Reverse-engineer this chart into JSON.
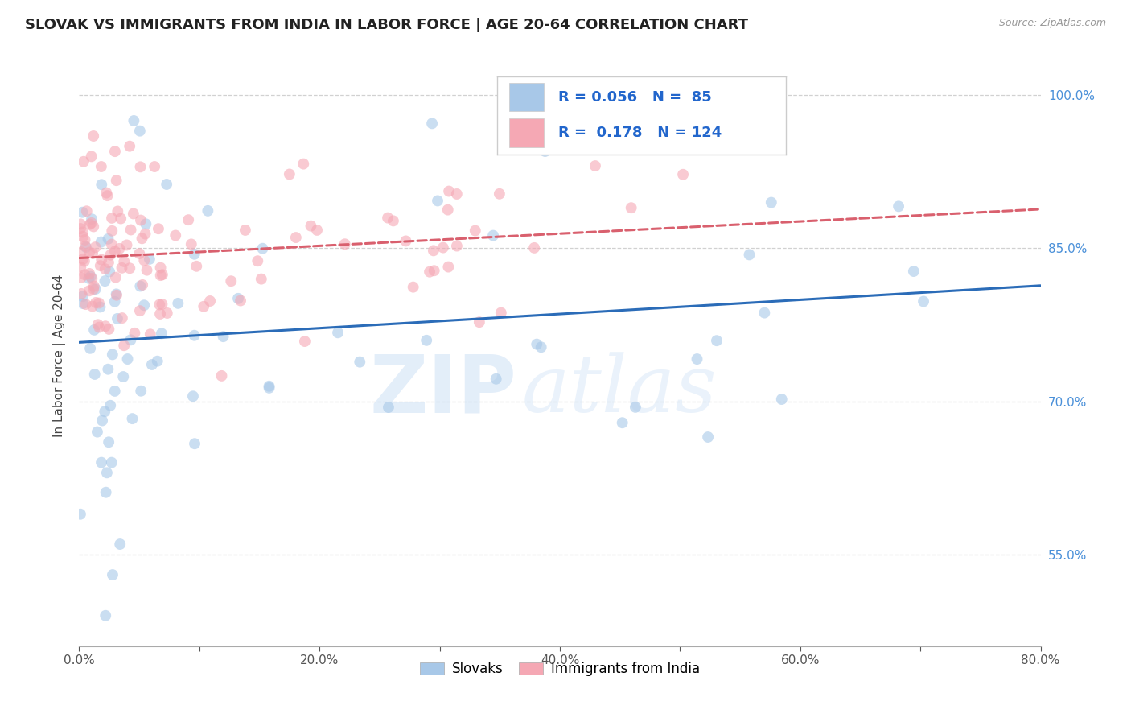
{
  "title": "SLOVAK VS IMMIGRANTS FROM INDIA IN LABOR FORCE | AGE 20-64 CORRELATION CHART",
  "source_text": "Source: ZipAtlas.com",
  "ylabel": "In Labor Force | Age 20-64",
  "xlim": [
    0.0,
    0.8
  ],
  "ylim": [
    0.46,
    1.03
  ],
  "xtick_labels": [
    "0.0%",
    "",
    "20.0%",
    "",
    "40.0%",
    "",
    "60.0%",
    "",
    "80.0%"
  ],
  "xtick_values": [
    0.0,
    0.1,
    0.2,
    0.3,
    0.4,
    0.5,
    0.6,
    0.7,
    0.8
  ],
  "ytick_labels": [
    "55.0%",
    "70.0%",
    "85.0%",
    "100.0%"
  ],
  "ytick_values": [
    0.55,
    0.7,
    0.85,
    1.0
  ],
  "blue_color": "#a8c8e8",
  "pink_color": "#f5a8b4",
  "blue_line_color": "#2b6cb8",
  "pink_line_color": "#d9606e",
  "R_blue": 0.056,
  "N_blue": 85,
  "R_pink": 0.178,
  "N_pink": 124,
  "legend_label_blue": "Slovaks",
  "legend_label_pink": "Immigrants from India",
  "watermark_zip": "ZIP",
  "watermark_atlas": "atlas",
  "background_color": "#ffffff",
  "grid_color": "#cccccc",
  "scatter_alpha": 0.6,
  "scatter_size": 100,
  "title_fontsize": 13,
  "source_fontsize": 9,
  "legend_fontsize": 13,
  "ylabel_fontsize": 11
}
